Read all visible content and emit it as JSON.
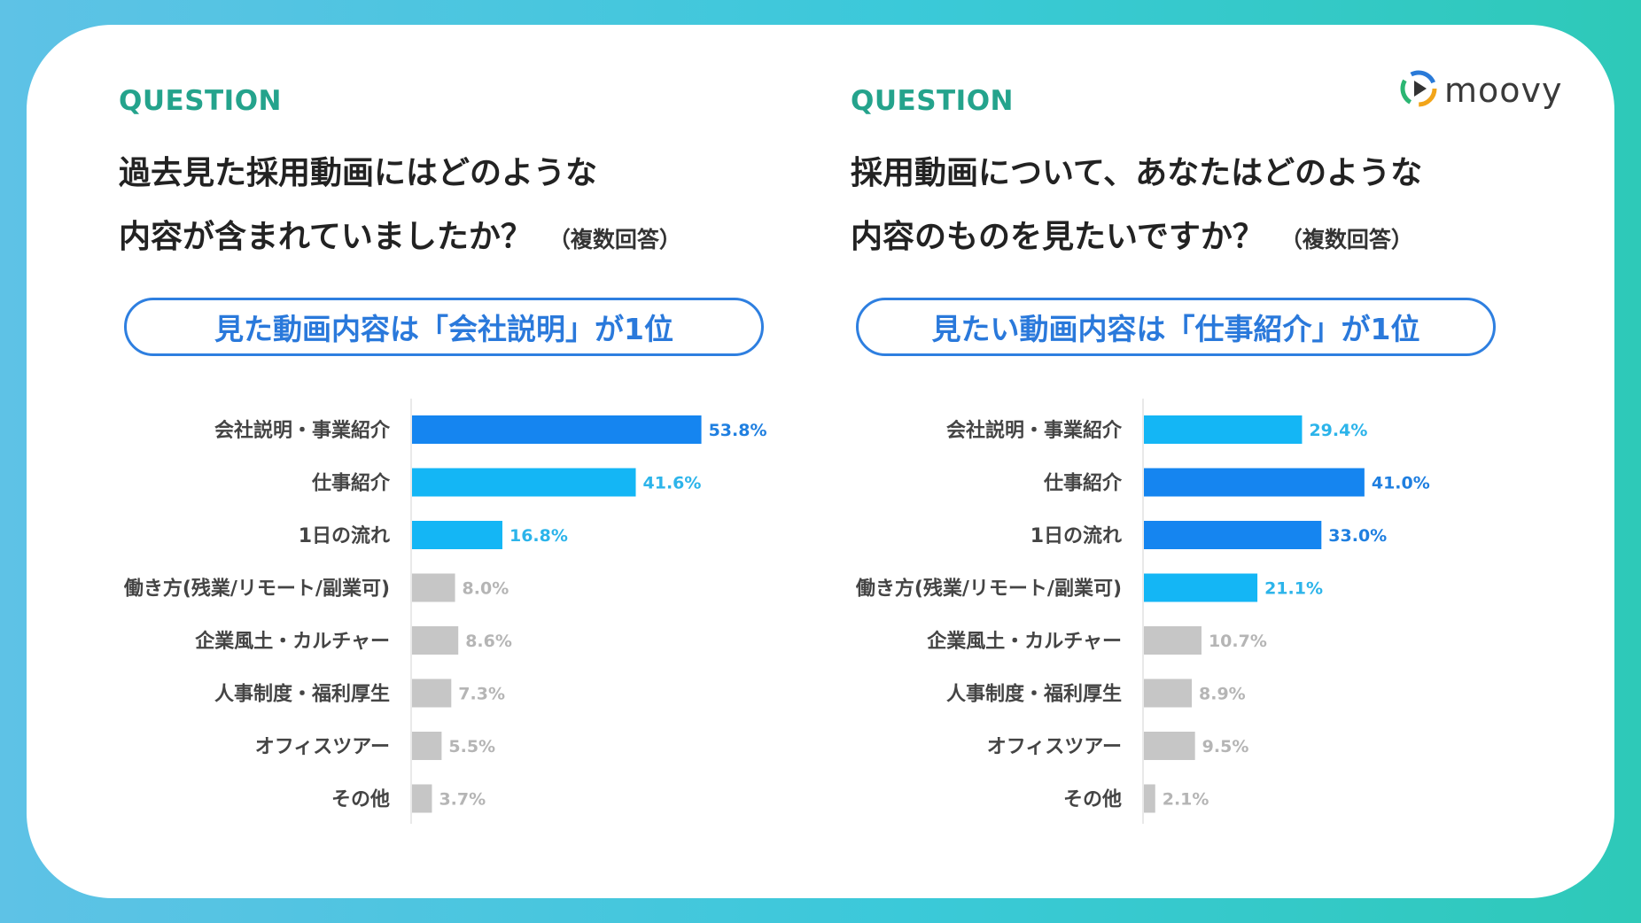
{
  "brand": {
    "logo_text": "moovy"
  },
  "colors": {
    "accent_dark": "#1585f0",
    "accent_light": "#14b6f5",
    "neutral": "#c6c6c6",
    "label_dark": "#1f7fe0",
    "label_light": "#2cb4ea",
    "label_neutral": "#b5b5b5"
  },
  "panels": [
    {
      "question_label": "QUESTION",
      "question_line1": "過去見た採用動画にはどのような",
      "question_line2": "内容が含まれていましたか？",
      "question_note": "（複数回答）",
      "headline": "見た動画内容は「会社説明」が1位"
    },
    {
      "question_label": "QUESTION",
      "question_line1": "採用動画について、あなたはどのような",
      "question_line2": "内容のものを見たいですか？",
      "question_note": "（複数回答）",
      "headline": "見たい動画内容は「仕事紹介」が1位"
    }
  ],
  "chart_data": [
    {
      "type": "bar",
      "orientation": "horizontal",
      "unit": "%",
      "xlim": [
        0,
        60
      ],
      "categories": [
        "会社説明・事業紹介",
        "仕事紹介",
        "1日の流れ",
        "働き方(残業/リモート/副業可)",
        "企業風土・カルチャー",
        "人事制度・福利厚生",
        "オフィスツアー",
        "その他"
      ],
      "values": [
        53.8,
        41.6,
        16.8,
        8.0,
        8.6,
        7.3,
        5.5,
        3.7
      ],
      "value_labels": [
        "53.8%",
        "41.6%",
        "16.8%",
        "8.0%",
        "8.6%",
        "7.3%",
        "5.5%",
        "3.7%"
      ],
      "highlight": [
        "dark",
        "light",
        "light",
        "none",
        "none",
        "none",
        "none",
        "none"
      ]
    },
    {
      "type": "bar",
      "orientation": "horizontal",
      "unit": "%",
      "xlim": [
        0,
        45
      ],
      "categories": [
        "会社説明・事業紹介",
        "仕事紹介",
        "1日の流れ",
        "働き方(残業/リモート/副業可)",
        "企業風土・カルチャー",
        "人事制度・福利厚生",
        "オフィスツアー",
        "その他"
      ],
      "values": [
        29.4,
        41.0,
        33.0,
        21.1,
        10.7,
        8.9,
        9.5,
        2.1
      ],
      "value_labels": [
        "29.4%",
        "41.0%",
        "33.0%",
        "21.1%",
        "10.7%",
        "8.9%",
        "9.5%",
        "2.1%"
      ],
      "highlight": [
        "light",
        "dark",
        "dark",
        "light",
        "none",
        "none",
        "none",
        "none"
      ]
    }
  ]
}
